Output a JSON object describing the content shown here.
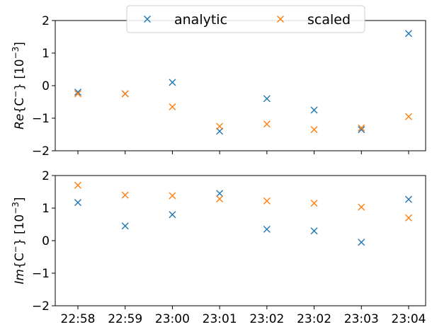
{
  "chart_data": {
    "type": "scatter",
    "marker": "x",
    "categories": [
      "22:58",
      "22:59",
      "23:00",
      "23:01",
      "23:02",
      "23:02",
      "23:03",
      "23:04"
    ],
    "legend": {
      "placement": "top-center",
      "columns": 2,
      "entries": [
        {
          "name": "analytic",
          "color": "#1f77b4"
        },
        {
          "name": "scaled",
          "color": "#ff7f0e"
        }
      ]
    },
    "panels": [
      {
        "ylabel_prefix": "Re",
        "ylabel_core": "{C",
        "ylabel_sup": "−",
        "ylabel_mid": "} [10",
        "ylabel_exp": "−3",
        "ylabel_end": "]",
        "ylim": [
          -2,
          2
        ],
        "yticks": [
          "−2",
          "−1",
          "0",
          "1",
          "2"
        ],
        "show_xticklabels": false,
        "series": [
          {
            "name": "analytic",
            "color": "#1f77b4",
            "values": [
              -0.2,
              -0.25,
              0.1,
              -1.4,
              -0.4,
              -0.75,
              -1.35,
              1.6
            ]
          },
          {
            "name": "scaled",
            "color": "#ff7f0e",
            "values": [
              -0.25,
              -0.25,
              -0.65,
              -1.25,
              -1.18,
              -1.35,
              -1.3,
              -0.95
            ]
          }
        ]
      },
      {
        "ylabel_prefix": "Im",
        "ylabel_core": "{C",
        "ylabel_sup": "−",
        "ylabel_mid": "} [10",
        "ylabel_exp": "−3",
        "ylabel_end": "]",
        "ylim": [
          -2,
          2
        ],
        "yticks": [
          "−2",
          "−1",
          "0",
          "1",
          "2"
        ],
        "show_xticklabels": true,
        "series": [
          {
            "name": "analytic",
            "color": "#1f77b4",
            "values": [
              1.17,
              0.45,
              0.8,
              1.45,
              0.35,
              0.3,
              -0.05,
              1.27
            ]
          },
          {
            "name": "scaled",
            "color": "#ff7f0e",
            "values": [
              1.7,
              1.4,
              1.38,
              1.28,
              1.22,
              1.15,
              1.03,
              0.7
            ]
          }
        ]
      }
    ]
  }
}
